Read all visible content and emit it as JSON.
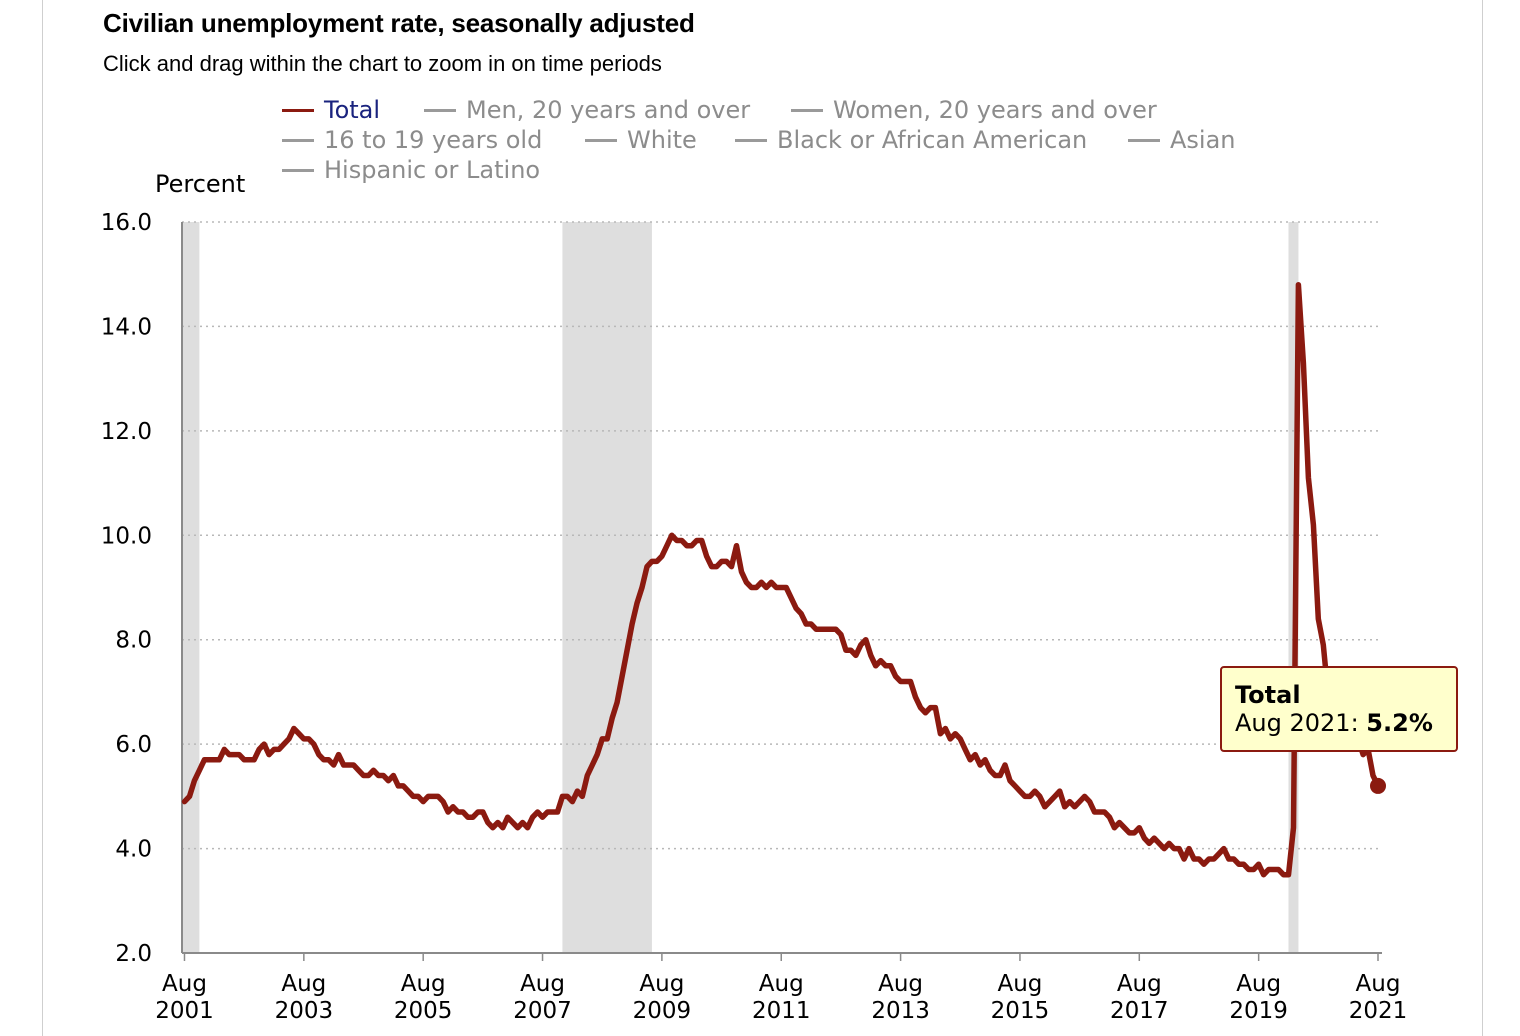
{
  "chart_data": {
    "type": "line",
    "title": "Civilian unemployment rate, seasonally adjusted",
    "subtitle": "Click and drag within the chart to zoom in on time periods",
    "ylabel": "Percent",
    "ylim": [
      2.0,
      16.0
    ],
    "yticks": [
      "16.0",
      "14.0",
      "12.0",
      "10.0",
      "8.0",
      "6.0",
      "4.0",
      "2.0"
    ],
    "xlim": [
      "2001-08",
      "2021-08"
    ],
    "xticks": [
      {
        "month": "Aug",
        "year": "2001"
      },
      {
        "month": "Aug",
        "year": "2003"
      },
      {
        "month": "Aug",
        "year": "2005"
      },
      {
        "month": "Aug",
        "year": "2007"
      },
      {
        "month": "Aug",
        "year": "2009"
      },
      {
        "month": "Aug",
        "year": "2011"
      },
      {
        "month": "Aug",
        "year": "2013"
      },
      {
        "month": "Aug",
        "year": "2015"
      },
      {
        "month": "Aug",
        "year": "2017"
      },
      {
        "month": "Aug",
        "year": "2019"
      },
      {
        "month": "Aug",
        "year": "2021"
      }
    ],
    "grid": "horizontal dotted",
    "legend": [
      {
        "label": "Total",
        "active": true
      },
      {
        "label": "Men, 20 years and over",
        "active": false
      },
      {
        "label": "Women, 20 years and over",
        "active": false
      },
      {
        "label": "16 to 19 years old",
        "active": false
      },
      {
        "label": "White",
        "active": false
      },
      {
        "label": "Black or African American",
        "active": false
      },
      {
        "label": "Asian",
        "active": false
      },
      {
        "label": "Hispanic or Latino",
        "active": false
      }
    ],
    "recessions": [
      {
        "start": "2001-03",
        "end": "2001-11"
      },
      {
        "start": "2007-12",
        "end": "2009-06"
      },
      {
        "start": "2020-02",
        "end": "2020-04"
      }
    ],
    "series": [
      {
        "name": "Total",
        "color": "#8b1a10",
        "start": "2001-08",
        "values": [
          4.9,
          5.0,
          5.3,
          5.5,
          5.7,
          5.7,
          5.7,
          5.7,
          5.9,
          5.8,
          5.8,
          5.8,
          5.7,
          5.7,
          5.7,
          5.9,
          6.0,
          5.8,
          5.9,
          5.9,
          6.0,
          6.1,
          6.3,
          6.2,
          6.1,
          6.1,
          6.0,
          5.8,
          5.7,
          5.7,
          5.6,
          5.8,
          5.6,
          5.6,
          5.6,
          5.5,
          5.4,
          5.4,
          5.5,
          5.4,
          5.4,
          5.3,
          5.4,
          5.2,
          5.2,
          5.1,
          5.0,
          5.0,
          4.9,
          5.0,
          5.0,
          5.0,
          4.9,
          4.7,
          4.8,
          4.7,
          4.7,
          4.6,
          4.6,
          4.7,
          4.7,
          4.5,
          4.4,
          4.5,
          4.4,
          4.6,
          4.5,
          4.4,
          4.5,
          4.4,
          4.6,
          4.7,
          4.6,
          4.7,
          4.7,
          4.7,
          5.0,
          5.0,
          4.9,
          5.1,
          5.0,
          5.4,
          5.6,
          5.8,
          6.1,
          6.1,
          6.5,
          6.8,
          7.3,
          7.8,
          8.3,
          8.7,
          9.0,
          9.4,
          9.5,
          9.5,
          9.6,
          9.8,
          10.0,
          9.9,
          9.9,
          9.8,
          9.8,
          9.9,
          9.9,
          9.6,
          9.4,
          9.4,
          9.5,
          9.5,
          9.4,
          9.8,
          9.3,
          9.1,
          9.0,
          9.0,
          9.1,
          9.0,
          9.1,
          9.0,
          9.0,
          9.0,
          8.8,
          8.6,
          8.5,
          8.3,
          8.3,
          8.2,
          8.2,
          8.2,
          8.2,
          8.2,
          8.1,
          7.8,
          7.8,
          7.7,
          7.9,
          8.0,
          7.7,
          7.5,
          7.6,
          7.5,
          7.5,
          7.3,
          7.2,
          7.2,
          7.2,
          6.9,
          6.7,
          6.6,
          6.7,
          6.7,
          6.2,
          6.3,
          6.1,
          6.2,
          6.1,
          5.9,
          5.7,
          5.8,
          5.6,
          5.7,
          5.5,
          5.4,
          5.4,
          5.6,
          5.3,
          5.2,
          5.1,
          5.0,
          5.0,
          5.1,
          5.0,
          4.8,
          4.9,
          5.0,
          5.1,
          4.8,
          4.9,
          4.8,
          4.9,
          5.0,
          4.9,
          4.7,
          4.7,
          4.7,
          4.6,
          4.4,
          4.5,
          4.4,
          4.3,
          4.3,
          4.4,
          4.2,
          4.1,
          4.2,
          4.1,
          4.0,
          4.1,
          4.0,
          4.0,
          3.8,
          4.0,
          3.8,
          3.8,
          3.7,
          3.8,
          3.8,
          3.9,
          4.0,
          3.8,
          3.8,
          3.7,
          3.7,
          3.6,
          3.6,
          3.7,
          3.5,
          3.6,
          3.6,
          3.6,
          3.5,
          3.5,
          4.4,
          14.8,
          13.3,
          11.1,
          10.2,
          8.4,
          7.9,
          6.9,
          6.7,
          6.7,
          6.4,
          6.2,
          6.0,
          6.1,
          5.8,
          5.9,
          5.4,
          5.2
        ]
      }
    ],
    "tooltip": {
      "series": "Total",
      "label": "Aug 2021: ",
      "value": "5.2%",
      "date": "2021-08"
    }
  }
}
